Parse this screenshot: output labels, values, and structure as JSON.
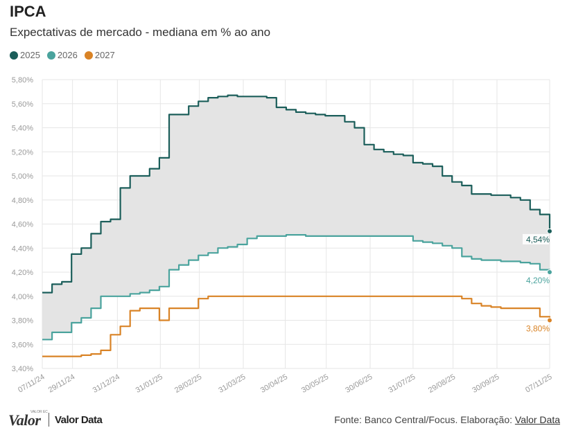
{
  "header": {
    "title": "IPCA",
    "subtitle": "Expectativas de mercado - mediana em % ao ano"
  },
  "footer": {
    "logo_text": "Valor",
    "logo_sup": "VALOR EC",
    "logo2_text": "Valor Data",
    "source_text": "Fonte: Banco Central/Focus. Elaboração: ",
    "source_link": "Valor Data"
  },
  "chart_data": {
    "type": "line",
    "ylim": [
      3.4,
      5.8
    ],
    "yticks": [
      3.4,
      3.6,
      3.8,
      4.0,
      4.2,
      4.4,
      4.6,
      4.8,
      5.0,
      5.2,
      5.4,
      5.6,
      5.8
    ],
    "ytick_labels": [
      "3,40%",
      "3,60%",
      "3,80%",
      "4,00%",
      "4,20%",
      "4,40%",
      "4,60%",
      "4,80%",
      "5,00%",
      "5,20%",
      "5,40%",
      "5,60%",
      "5,80%"
    ],
    "xticks": [
      "07/11/24",
      "29/11/24",
      "31/12/24",
      "31/01/25",
      "28/02/25",
      "31/03/25",
      "30/04/25",
      "30/05/25",
      "30/06/25",
      "31/07/25",
      "29/08/25",
      "30/09/25",
      "07/11/25"
    ],
    "x_week_index": [
      0,
      3.1,
      7.7,
      12.1,
      16.1,
      20.6,
      24.9,
      29.1,
      33.6,
      38.0,
      42.1,
      46.6,
      52
    ],
    "legend_position": "top-left",
    "band_between": [
      "2025",
      "2026"
    ],
    "series": [
      {
        "name": "2025",
        "color": "#1b5e5a",
        "end_label": "4,54%",
        "values": [
          4.03,
          4.1,
          4.12,
          4.35,
          4.4,
          4.52,
          4.62,
          4.64,
          4.9,
          5.0,
          5.0,
          5.06,
          5.15,
          5.51,
          5.51,
          5.58,
          5.62,
          5.65,
          5.66,
          5.67,
          5.66,
          5.66,
          5.66,
          5.65,
          5.57,
          5.55,
          5.53,
          5.52,
          5.51,
          5.5,
          5.5,
          5.45,
          5.4,
          5.26,
          5.22,
          5.2,
          5.18,
          5.17,
          5.11,
          5.1,
          5.08,
          5.0,
          4.95,
          4.92,
          4.85,
          4.85,
          4.84,
          4.84,
          4.82,
          4.8,
          4.72,
          4.68,
          4.54
        ]
      },
      {
        "name": "2026",
        "color": "#4aa39d",
        "end_label": "4,20%",
        "values": [
          3.64,
          3.7,
          3.7,
          3.78,
          3.82,
          3.9,
          4.0,
          4.0,
          4.0,
          4.02,
          4.03,
          4.05,
          4.08,
          4.22,
          4.26,
          4.3,
          4.34,
          4.36,
          4.4,
          4.41,
          4.43,
          4.48,
          4.5,
          4.5,
          4.5,
          4.51,
          4.51,
          4.5,
          4.5,
          4.5,
          4.5,
          4.5,
          4.5,
          4.5,
          4.5,
          4.5,
          4.5,
          4.5,
          4.46,
          4.45,
          4.44,
          4.42,
          4.4,
          4.33,
          4.31,
          4.3,
          4.3,
          4.29,
          4.29,
          4.28,
          4.27,
          4.22,
          4.2
        ]
      },
      {
        "name": "2027",
        "color": "#d98326",
        "end_label": "3,80%",
        "values": [
          3.5,
          3.5,
          3.5,
          3.5,
          3.51,
          3.52,
          3.55,
          3.68,
          3.75,
          3.88,
          3.9,
          3.9,
          3.8,
          3.9,
          3.9,
          3.9,
          3.98,
          4.0,
          4.0,
          4.0,
          4.0,
          4.0,
          4.0,
          4.0,
          4.0,
          4.0,
          4.0,
          4.0,
          4.0,
          4.0,
          4.0,
          4.0,
          4.0,
          4.0,
          4.0,
          4.0,
          4.0,
          4.0,
          4.0,
          4.0,
          4.0,
          4.0,
          4.0,
          3.98,
          3.94,
          3.92,
          3.91,
          3.9,
          3.9,
          3.9,
          3.9,
          3.83,
          3.8
        ]
      }
    ]
  }
}
